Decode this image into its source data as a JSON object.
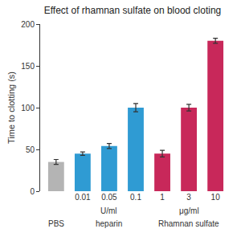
{
  "chart_data": {
    "type": "bar",
    "title": "Effect of rhamnan sulfate on blood cloting",
    "y_label": "Time to clotting (s)",
    "categories": [
      null,
      "0.01",
      "0.05",
      "0.1",
      "1",
      "3",
      "10"
    ],
    "values": [
      35,
      45,
      54,
      100,
      45,
      100,
      180
    ],
    "errors": [
      3,
      2,
      3,
      5,
      4,
      4,
      3
    ],
    "colors": [
      "#b4b4b4",
      "#2f9bd3",
      "#2f9bd3",
      "#2f9bd3",
      "#c8285a",
      "#c8285a",
      "#c8285a"
    ],
    "groups": [
      {
        "name": "PBS",
        "size": 1
      },
      {
        "name": "heparin",
        "size": 3,
        "unit": "U/ml"
      },
      {
        "name": "Rhamnan sulfate",
        "size": 3,
        "unit": "μg/ml"
      }
    ],
    "ylim": [
      0,
      200
    ],
    "yticks": [
      0,
      50,
      100,
      150,
      200
    ],
    "grid": false
  }
}
